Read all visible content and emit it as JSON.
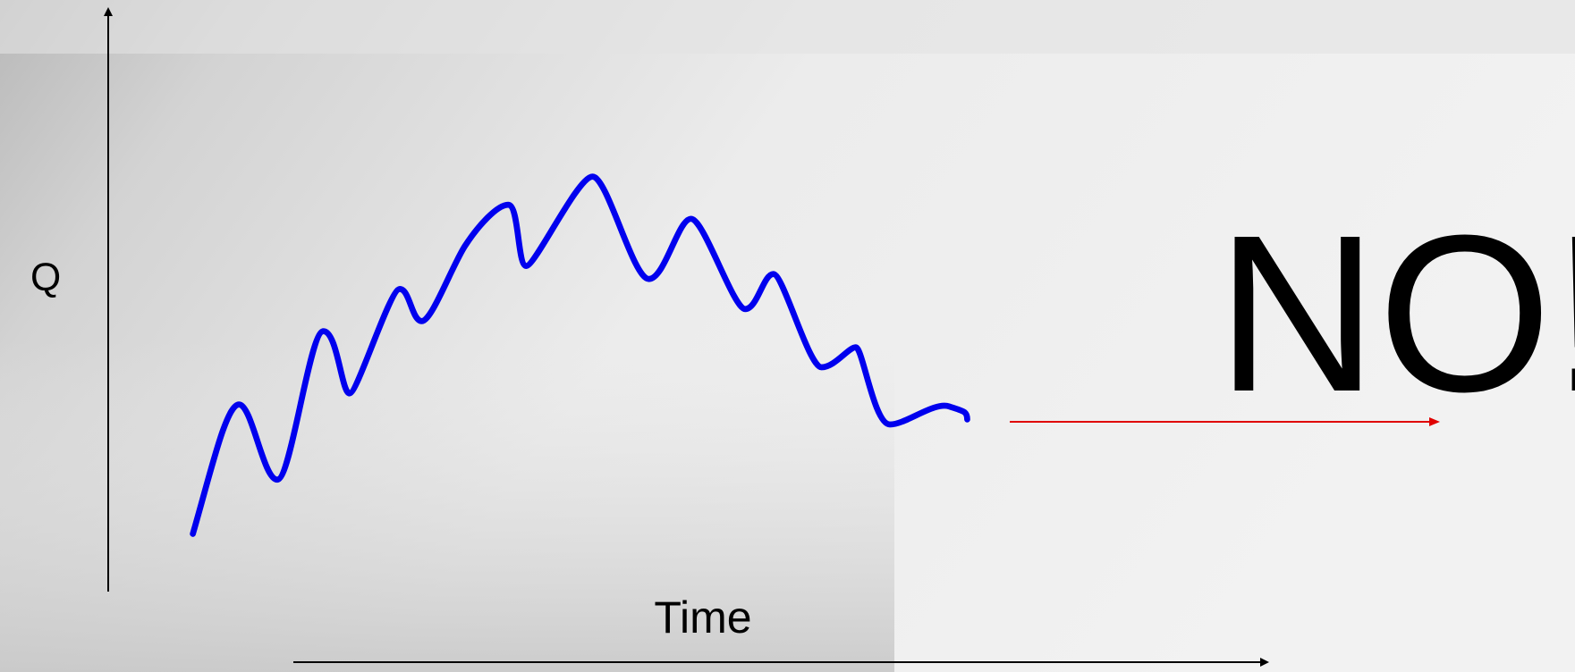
{
  "labels": {
    "y_axis": "Q",
    "x_axis": "Time",
    "verdict": "NO!"
  }
}
